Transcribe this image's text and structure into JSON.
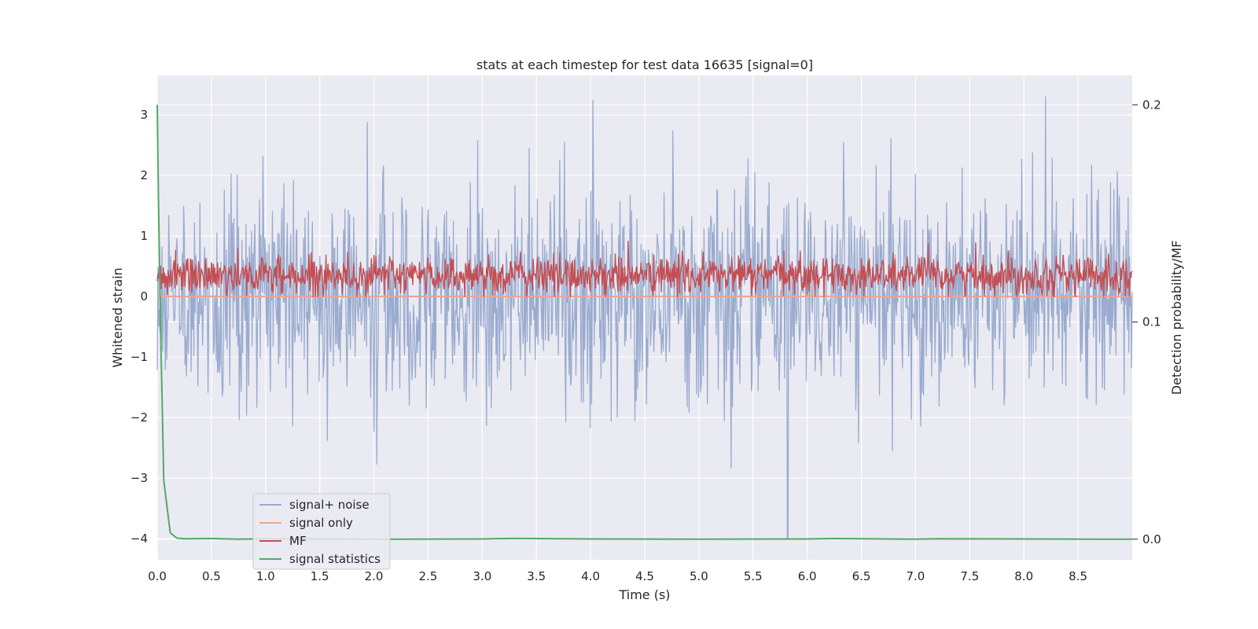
{
  "chart_data": {
    "type": "line",
    "title": "stats at each timestep for test data 16635 [signal=0]",
    "xlabel": "Time (s)",
    "ylabel": "Whitened strain",
    "y2label": "Detection probability/MF",
    "xlim": [
      0.0,
      9.0
    ],
    "ylim": [
      -4.35,
      3.65
    ],
    "y2lim": [
      -0.0095,
      0.2135
    ],
    "xticks": [
      0.0,
      0.5,
      1.0,
      1.5,
      2.0,
      2.5,
      3.0,
      3.5,
      4.0,
      4.5,
      5.0,
      5.5,
      6.0,
      6.5,
      7.0,
      7.5,
      8.0,
      8.5
    ],
    "xtick_labels": [
      "0.0",
      "0.5",
      "1.0",
      "1.5",
      "2.0",
      "2.5",
      "3.0",
      "3.5",
      "4.0",
      "4.5",
      "5.0",
      "5.5",
      "6.0",
      "6.5",
      "7.0",
      "7.5",
      "8.0",
      "8.5"
    ],
    "yticks": [
      -4,
      -3,
      -2,
      -1,
      0,
      1,
      2,
      3
    ],
    "ytick_labels": [
      "−4",
      "−3",
      "−2",
      "−1",
      "0",
      "1",
      "2",
      "3"
    ],
    "y2ticks": [
      0.0,
      0.1,
      0.2
    ],
    "y2tick_labels": [
      "0.0",
      "0.1",
      "0.2"
    ],
    "grid": true,
    "legend_position": "lower-left",
    "series": [
      {
        "name": "signal+ noise",
        "axis": "left",
        "color": "#9aabcf",
        "description_stats": {
          "mean": 0.0,
          "std": 0.85,
          "max": 3.3,
          "min": -4.0,
          "n_points": 1440
        }
      },
      {
        "name": "signal only",
        "axis": "left",
        "color": "#e8a792",
        "x": [
          0.0,
          9.0
        ],
        "values": [
          0.0,
          0.0
        ]
      },
      {
        "name": "MF",
        "axis": "left",
        "color": "#c44e52",
        "description_stats": {
          "mean": 0.35,
          "std": 0.16,
          "max": 1.0,
          "min": 0.0,
          "n_points": 1440
        }
      },
      {
        "name": "signal statistics",
        "axis": "right",
        "color": "#55a868",
        "x": [
          0.0,
          0.01,
          0.03,
          0.06,
          0.12,
          0.18,
          0.25,
          0.5,
          0.75,
          1.0,
          1.5,
          2.0,
          3.0,
          3.3,
          4.0,
          5.0,
          6.0,
          6.25,
          7.0,
          7.2,
          8.0,
          9.0
        ],
        "values": [
          0.2,
          0.16,
          0.1,
          0.027,
          0.003,
          0.0005,
          0.0002,
          0.0003,
          0.0,
          0.0002,
          0.0001,
          0.0,
          0.0001,
          0.0004,
          0.0001,
          0.0,
          0.0001,
          0.0003,
          0.0,
          0.0002,
          0.0001,
          0.0
        ]
      }
    ]
  }
}
